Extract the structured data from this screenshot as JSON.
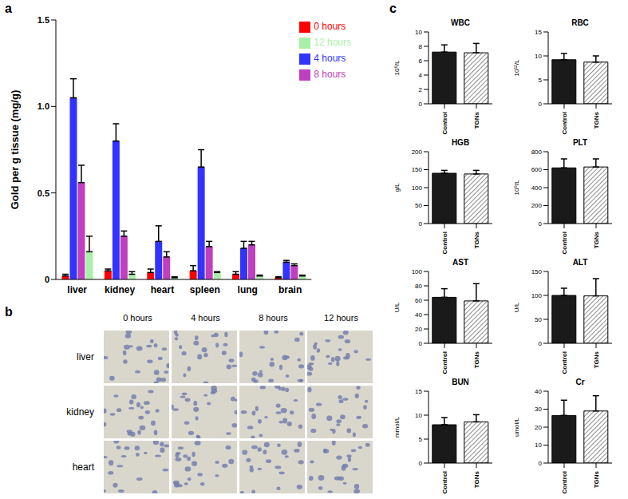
{
  "panel_labels": [
    "a",
    "b",
    "c"
  ],
  "chart_data": [
    {
      "type": "bar",
      "y_label": "Gold per g tissue (mg/g)",
      "categories": [
        "liver",
        "kidney",
        "heart",
        "spleen",
        "lung",
        "brain"
      ],
      "series": [
        {
          "name": "0 hours",
          "color": "#ff0000",
          "values": [
            0.02,
            0.05,
            0.04,
            0.05,
            0.03,
            0.01
          ],
          "errors": [
            0.01,
            0.01,
            0.02,
            0.03,
            0.015,
            0.005
          ]
        },
        {
          "name": "4 hours",
          "color": "#3333ff",
          "values": [
            1.05,
            0.8,
            0.22,
            0.65,
            0.18,
            0.1
          ],
          "errors": [
            0.11,
            0.1,
            0.09,
            0.1,
            0.04,
            0.01
          ]
        },
        {
          "name": "8 hours",
          "color": "#bf3fbf",
          "values": [
            0.56,
            0.25,
            0.13,
            0.19,
            0.2,
            0.08
          ],
          "errors": [
            0.1,
            0.03,
            0.03,
            0.03,
            0.02,
            0.01
          ]
        },
        {
          "name": "12 hours",
          "color": "#a8f0a8",
          "values": [
            0.16,
            0.03,
            0.01,
            0.04,
            0.02,
            0.02
          ],
          "errors": [
            0.09,
            0.015,
            0.005,
            0.005,
            0.005,
            0.005
          ]
        }
      ],
      "ylim": [
        0,
        1.5
      ],
      "yticks": [
        0,
        0.5,
        {
          "value": 1,
          "label": "1.0"
        },
        1.5
      ],
      "grid": false,
      "legend": "upper right"
    },
    {
      "type": "bar",
      "title": "WBC",
      "y_label": "10⁹/L",
      "categories": [
        "Control",
        "TGNs"
      ],
      "values": [
        7.2,
        7.1
      ],
      "errors": [
        1.0,
        1.3
      ],
      "colors": [
        "#1a1a1a",
        "#666666"
      ],
      "ylim": [
        0,
        10
      ],
      "yticks": [
        0,
        2,
        4,
        6,
        8,
        10
      ],
      "grid": false
    },
    {
      "type": "bar",
      "title": "RBC",
      "y_label": "10¹²/L",
      "categories": [
        "Control",
        "TGNs"
      ],
      "values": [
        9.2,
        8.7
      ],
      "errors": [
        1.3,
        1.3
      ],
      "colors": [
        "#1a1a1a",
        "#666666"
      ],
      "ylim": [
        0,
        15
      ],
      "yticks": [
        0,
        5,
        10,
        15
      ],
      "grid": false
    },
    {
      "type": "bar",
      "title": "HGB",
      "y_label": "g/L",
      "categories": [
        "Control",
        "TGNs"
      ],
      "values": [
        140,
        138
      ],
      "errors": [
        8,
        10
      ],
      "colors": [
        "#1a1a1a",
        "#666666"
      ],
      "ylim": [
        0,
        200
      ],
      "yticks": [
        0,
        50,
        100,
        150,
        200
      ],
      "grid": false
    },
    {
      "type": "bar",
      "title": "PLT",
      "y_label": "10⁹/L",
      "categories": [
        "Control",
        "TGNs"
      ],
      "values": [
        620,
        630
      ],
      "errors": [
        100,
        90
      ],
      "colors": [
        "#1a1a1a",
        "#666666"
      ],
      "ylim": [
        0,
        800
      ],
      "yticks": [
        0,
        200,
        400,
        600,
        800
      ],
      "grid": false
    },
    {
      "type": "bar",
      "title": "AST",
      "y_label": "U/L",
      "categories": [
        "Control",
        "TGNs"
      ],
      "values": [
        64,
        59
      ],
      "errors": [
        12,
        24
      ],
      "colors": [
        "#1a1a1a",
        "#666666"
      ],
      "ylim": [
        0,
        100
      ],
      "yticks": [
        0,
        20,
        40,
        60,
        80,
        100
      ],
      "grid": false
    },
    {
      "type": "bar",
      "title": "ALT",
      "y_label": "U/L",
      "categories": [
        "Control",
        "TGNs"
      ],
      "values": [
        100,
        99
      ],
      "errors": [
        15,
        36
      ],
      "colors": [
        "#1a1a1a",
        "#666666"
      ],
      "ylim": [
        0,
        150
      ],
      "yticks": [
        0,
        50,
        100,
        150
      ],
      "grid": false
    },
    {
      "type": "bar",
      "title": "BUN",
      "y_label": "mmol/L",
      "categories": [
        "Control",
        "TGNs"
      ],
      "values": [
        8.0,
        8.6
      ],
      "errors": [
        1.5,
        1.5
      ],
      "colors": [
        "#1a1a1a",
        "#666666"
      ],
      "ylim": [
        0,
        15
      ],
      "yticks": [
        0,
        5,
        10,
        15
      ],
      "grid": false
    },
    {
      "type": "bar",
      "title": "Cr",
      "y_label": "umol/L",
      "categories": [
        "Control",
        "TGNs"
      ],
      "values": [
        26.5,
        29
      ],
      "errors": [
        8.5,
        8.5
      ],
      "colors": [
        "#1a1a1a",
        "#666666"
      ],
      "ylim": [
        0,
        40
      ],
      "yticks": [
        0,
        10,
        20,
        30,
        40
      ],
      "grid": false
    }
  ],
  "image_grid": {
    "columns": [
      "0 hours",
      "4 hours",
      "8 hours",
      "12 hours"
    ],
    "rows": [
      "liver",
      "kidney",
      "heart"
    ]
  }
}
